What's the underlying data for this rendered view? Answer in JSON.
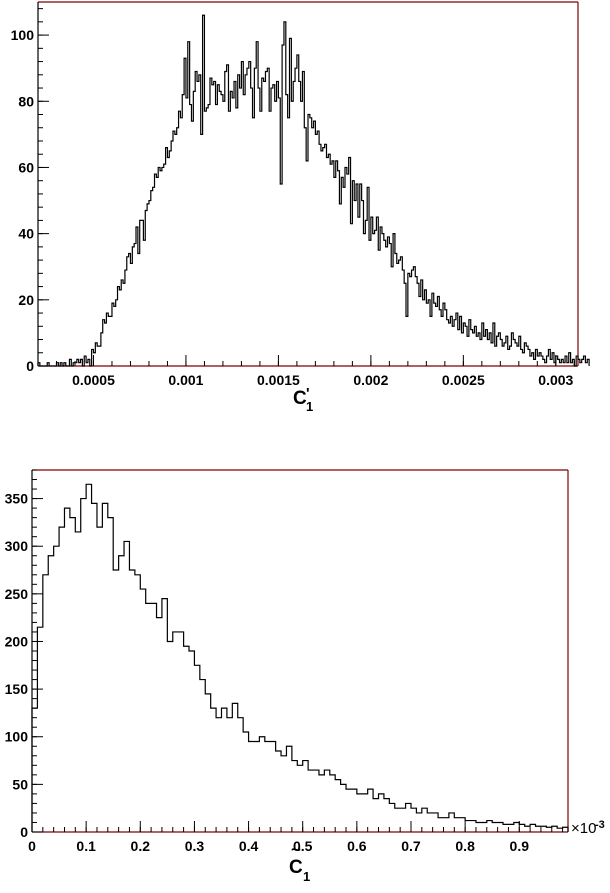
{
  "chart_data": [
    {
      "type": "histogram",
      "xlabel_main": "C",
      "xlabel_prime": "'",
      "xlabel_sub": "1",
      "xlim": [
        0.0002,
        0.00312
      ],
      "ylim": [
        0,
        110
      ],
      "x_ticks": [
        0.0005,
        0.001,
        0.0015,
        0.002,
        0.0025,
        0.003
      ],
      "x_tick_labels": [
        "0.0005",
        "0.001",
        "0.0015",
        "0.002",
        "0.0025",
        "0.003"
      ],
      "y_ticks": [
        0,
        20,
        40,
        60,
        80,
        100
      ],
      "y_tick_labels": [
        "0",
        "20",
        "40",
        "60",
        "80",
        "100"
      ],
      "grid": false,
      "legend": "none",
      "bin_start": 0.0002,
      "bin_width": 1e-05,
      "counts": [
        1,
        0,
        0,
        0,
        0,
        1,
        0,
        0,
        0,
        0,
        1,
        0,
        1,
        0,
        1,
        0,
        0,
        2,
        0,
        1,
        1,
        2,
        1,
        2,
        0,
        3,
        1,
        2,
        0,
        5,
        4,
        7,
        6,
        6,
        10,
        14,
        13,
        16,
        15,
        15,
        19,
        18,
        20,
        24,
        23,
        26,
        25,
        29,
        33,
        34,
        31,
        36,
        37,
        42,
        34,
        44,
        44,
        38,
        47,
        49,
        50,
        53,
        54,
        58,
        57,
        60,
        59,
        60,
        61,
        66,
        63,
        65,
        68,
        71,
        70,
        72,
        77,
        75,
        82,
        93,
        81,
        98,
        79,
        74,
        83,
        89,
        86,
        88,
        70,
        106,
        77,
        78,
        79,
        87,
        85,
        86,
        79,
        85,
        83,
        82,
        80,
        89,
        91,
        77,
        83,
        81,
        86,
        78,
        88,
        84,
        92,
        82,
        88,
        90,
        92,
        84,
        75,
        90,
        98,
        84,
        77,
        87,
        86,
        89,
        90,
        77,
        84,
        85,
        80,
        86,
        81,
        55,
        97,
        104,
        82,
        75,
        99,
        80,
        86,
        90,
        94,
        86,
        80,
        89,
        72,
        62,
        76,
        75,
        72,
        74,
        70,
        71,
        67,
        65,
        66,
        67,
        63,
        64,
        61,
        62,
        57,
        62,
        59,
        49,
        57,
        54,
        60,
        58,
        63,
        43,
        56,
        50,
        55,
        45,
        55,
        50,
        40,
        44,
        54,
        38,
        45,
        40,
        41,
        45,
        35,
        42,
        40,
        38,
        36,
        39,
        37,
        30,
        40,
        34,
        31,
        32,
        33,
        29,
        25,
        15,
        28,
        27,
        29,
        30,
        27,
        25,
        21,
        26,
        20,
        23,
        19,
        20,
        15,
        22,
        19,
        18,
        21,
        17,
        15,
        19,
        17,
        14,
        13,
        15,
        12,
        14,
        16,
        11,
        15,
        10,
        13,
        12,
        9,
        14,
        11,
        10,
        12,
        9,
        10,
        8,
        13,
        9,
        11,
        8,
        10,
        7,
        13,
        6,
        9,
        10,
        8,
        6,
        7,
        9,
        5,
        6,
        10,
        8,
        7,
        6,
        9,
        5,
        4,
        7,
        6,
        5,
        3,
        4,
        2,
        5,
        3,
        4,
        3,
        2,
        1,
        3,
        5,
        2,
        4,
        1,
        3,
        2,
        1,
        2,
        1,
        3,
        1,
        4,
        1,
        2,
        0,
        3,
        2,
        1,
        2,
        3,
        1,
        2
      ]
    },
    {
      "type": "histogram",
      "xlabel_main": "C",
      "xlabel_accent": "~",
      "xlabel_sub": "1",
      "x_scale_label": "×10",
      "x_scale_exponent": "-3",
      "xlim": [
        0,
        0.99
      ],
      "ylim": [
        0,
        380
      ],
      "x_ticks": [
        0,
        0.1,
        0.2,
        0.3,
        0.4,
        0.5,
        0.6,
        0.7,
        0.8,
        0.9
      ],
      "x_tick_labels": [
        "0",
        "0.1",
        "0.2",
        "0.3",
        "0.4",
        "0.5",
        "0.6",
        "0.7",
        "0.8",
        "0.9"
      ],
      "y_ticks": [
        0,
        50,
        100,
        150,
        200,
        250,
        300,
        350
      ],
      "y_tick_labels": [
        "0",
        "50",
        "100",
        "150",
        "200",
        "250",
        "300",
        "350"
      ],
      "grid": false,
      "legend": "none",
      "bin_start": 0,
      "bin_width": 0.01,
      "counts": [
        130,
        215,
        270,
        290,
        300,
        320,
        340,
        330,
        315,
        350,
        365,
        345,
        320,
        345,
        330,
        275,
        290,
        305,
        275,
        270,
        255,
        240,
        240,
        225,
        245,
        200,
        210,
        210,
        195,
        190,
        175,
        160,
        145,
        130,
        120,
        130,
        120,
        135,
        120,
        105,
        95,
        95,
        100,
        95,
        95,
        85,
        80,
        90,
        75,
        70,
        75,
        65,
        65,
        60,
        65,
        60,
        55,
        50,
        45,
        45,
        40,
        40,
        45,
        35,
        40,
        35,
        30,
        25,
        25,
        30,
        25,
        20,
        25,
        20,
        20,
        15,
        15,
        20,
        15,
        15,
        12,
        12,
        10,
        10,
        12,
        10,
        10,
        8,
        8,
        10,
        8,
        6,
        8,
        6,
        6,
        5,
        6,
        4,
        5
      ]
    }
  ]
}
